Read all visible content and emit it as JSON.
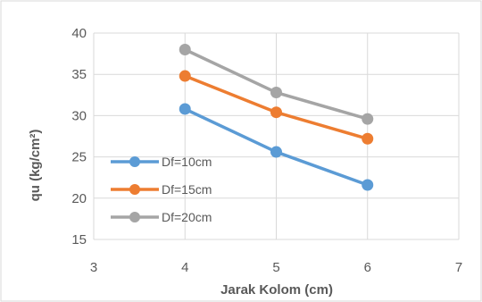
{
  "chart_data": {
    "type": "line",
    "title": "",
    "xlabel": "Jarak Kolom (cm)",
    "ylabel": "qu (kg/cm²)",
    "xlim": [
      3,
      7
    ],
    "ylim": [
      15,
      40
    ],
    "x_ticks": [
      3,
      4,
      5,
      6,
      7
    ],
    "y_ticks": [
      15,
      20,
      25,
      30,
      35,
      40
    ],
    "grid": "horizontal and vertical gridlines",
    "legend_position": "left, inside plot",
    "x": [
      4,
      5,
      6
    ],
    "series": [
      {
        "name": "Df=10cm",
        "values": [
          30.8,
          25.6,
          21.6
        ],
        "color": "#5B9BD5"
      },
      {
        "name": "Df=15cm",
        "values": [
          34.8,
          30.4,
          27.2
        ],
        "color": "#ED7D31"
      },
      {
        "name": "Df=20cm",
        "values": [
          38.0,
          32.8,
          29.6
        ],
        "color": "#A5A5A5"
      }
    ]
  }
}
